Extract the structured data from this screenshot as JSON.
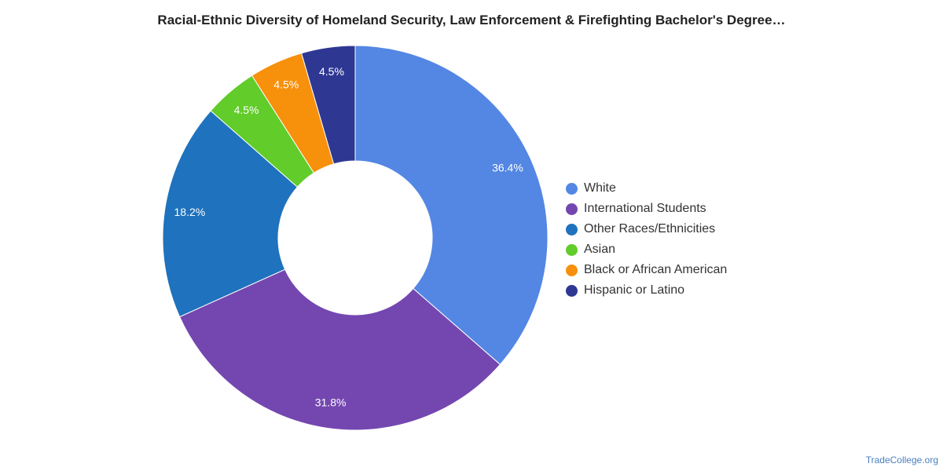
{
  "chart_data": {
    "type": "pie",
    "title": "Racial-Ethnic Diversity of Homeland Security, Law Enforcement & Firefighting Bachelor's Degree…",
    "donut": true,
    "legend_position": "right",
    "categories": [
      "White",
      "International Students",
      "Other Races/Ethnicities",
      "Asian",
      "Black or African American",
      "Hispanic or Latino"
    ],
    "values": [
      36.4,
      31.8,
      18.2,
      4.5,
      4.5,
      4.5
    ],
    "labels": [
      "36.4%",
      "31.8%",
      "18.2%",
      "4.5%",
      "4.5%",
      "4.5%"
    ],
    "colors": [
      "#5387e3",
      "#7447b0",
      "#1f72bd",
      "#62cc2a",
      "#f7900b",
      "#2e3892"
    ]
  },
  "footer": {
    "credit": "TradeCollege.org"
  }
}
